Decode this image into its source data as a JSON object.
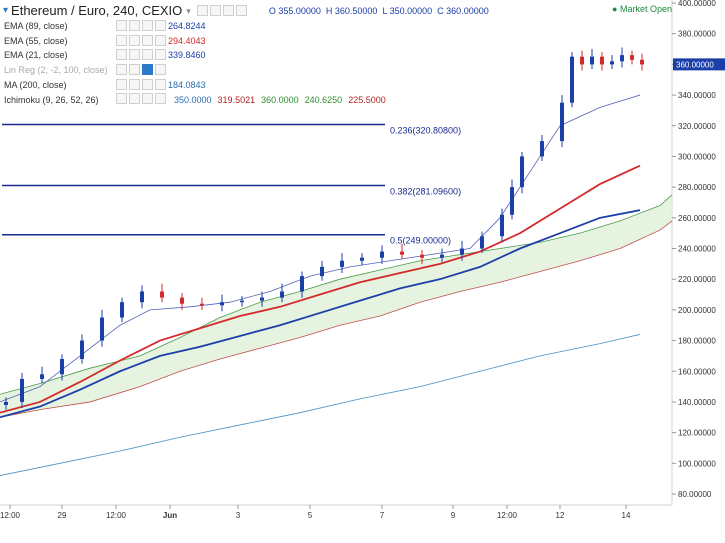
{
  "header": {
    "symbol": "Ethereum / Euro, 240, CEXIO",
    "open": "O 355.00000",
    "high": "H 360.50000",
    "low": "L 350.00000",
    "close": "C 360.00000",
    "market_status": "Market Open"
  },
  "legend": [
    {
      "name": "EMA (89, close)",
      "value": "264.8244",
      "color": "#1a3fa8"
    },
    {
      "name": "EMA (55, close)",
      "value": "294.4043",
      "color": "#d42a2a"
    },
    {
      "name": "EMA (21, close)",
      "value": "339.8460",
      "color": "#1a3fa8"
    },
    {
      "name": "Lin Reg (2, -2, 100, close)",
      "value": "",
      "color": "#aaaaaa"
    },
    {
      "name": "MA (200, close)",
      "value": "184.0843",
      "color": "#2a6fb0"
    },
    {
      "name": "Ichimoku (9, 26, 52, 26)",
      "value": "",
      "color": "#333333"
    }
  ],
  "ichimoku_values": [
    {
      "value": "350.0000",
      "color": "#2a6fb0"
    },
    {
      "value": "319.5021",
      "color": "#b22222"
    },
    {
      "value": "360.0000",
      "color": "#2e8b2e"
    },
    {
      "value": "240.6250",
      "color": "#2e8b2e"
    },
    {
      "value": "225.5000",
      "color": "#b22222"
    }
  ],
  "price_label": "360.00000",
  "chart_data": {
    "type": "candlestick",
    "ylim": [
      80,
      400
    ],
    "y_ticks": [
      "80.00000",
      "100.00000",
      "120.00000",
      "140.00000",
      "160.00000",
      "180.00000",
      "200.00000",
      "220.00000",
      "240.00000",
      "260.00000",
      "280.00000",
      "300.00000",
      "320.00000",
      "340.00000",
      "360.00000",
      "380.00000",
      "400.00000"
    ],
    "x_ticks": [
      "12:00",
      "29",
      "12:00",
      "Jun",
      "3",
      "5",
      "7",
      "9",
      "12:00",
      "12",
      "14"
    ],
    "fib_levels": [
      {
        "label": "0.236(320.80800)",
        "value": 320.808
      },
      {
        "label": "0.382(281.09600)",
        "value": 281.096
      },
      {
        "label": "0.5(249.00000)",
        "value": 249.0
      }
    ],
    "series": [
      {
        "name": "EMA (89, close)",
        "points": [
          [
            0,
            130
          ],
          [
            40,
            137
          ],
          [
            80,
            148
          ],
          [
            120,
            160
          ],
          [
            160,
            170
          ],
          [
            200,
            176
          ],
          [
            240,
            183
          ],
          [
            280,
            190
          ],
          [
            320,
            198
          ],
          [
            360,
            206
          ],
          [
            400,
            214
          ],
          [
            440,
            220
          ],
          [
            480,
            228
          ],
          [
            520,
            240
          ],
          [
            560,
            250
          ],
          [
            600,
            260
          ],
          [
            640,
            265
          ]
        ]
      },
      {
        "name": "EMA (55, close)",
        "points": [
          [
            0,
            133
          ],
          [
            40,
            140
          ],
          [
            80,
            153
          ],
          [
            120,
            167
          ],
          [
            160,
            180
          ],
          [
            200,
            188
          ],
          [
            240,
            196
          ],
          [
            280,
            202
          ],
          [
            320,
            210
          ],
          [
            360,
            218
          ],
          [
            400,
            224
          ],
          [
            440,
            230
          ],
          [
            480,
            238
          ],
          [
            520,
            250
          ],
          [
            560,
            266
          ],
          [
            600,
            282
          ],
          [
            640,
            294
          ]
        ]
      },
      {
        "name": "EMA (21, close)",
        "points": [
          [
            0,
            140
          ],
          [
            40,
            150
          ],
          [
            80,
            170
          ],
          [
            120,
            190
          ],
          [
            150,
            200
          ],
          [
            190,
            202
          ],
          [
            230,
            205
          ],
          [
            270,
            212
          ],
          [
            310,
            222
          ],
          [
            350,
            228
          ],
          [
            390,
            232
          ],
          [
            430,
            236
          ],
          [
            470,
            240
          ],
          [
            500,
            260
          ],
          [
            530,
            290
          ],
          [
            560,
            320
          ],
          [
            600,
            332
          ],
          [
            640,
            340
          ]
        ]
      },
      {
        "name": "MA (200, close)",
        "points": [
          [
            0,
            92
          ],
          [
            60,
            100
          ],
          [
            120,
            108
          ],
          [
            180,
            117
          ],
          [
            240,
            125
          ],
          [
            300,
            133
          ],
          [
            360,
            142
          ],
          [
            420,
            150
          ],
          [
            480,
            160
          ],
          [
            540,
            170
          ],
          [
            600,
            178
          ],
          [
            640,
            184
          ]
        ]
      }
    ],
    "candles": [
      [
        355,
        360.5,
        350,
        360
      ]
    ]
  }
}
